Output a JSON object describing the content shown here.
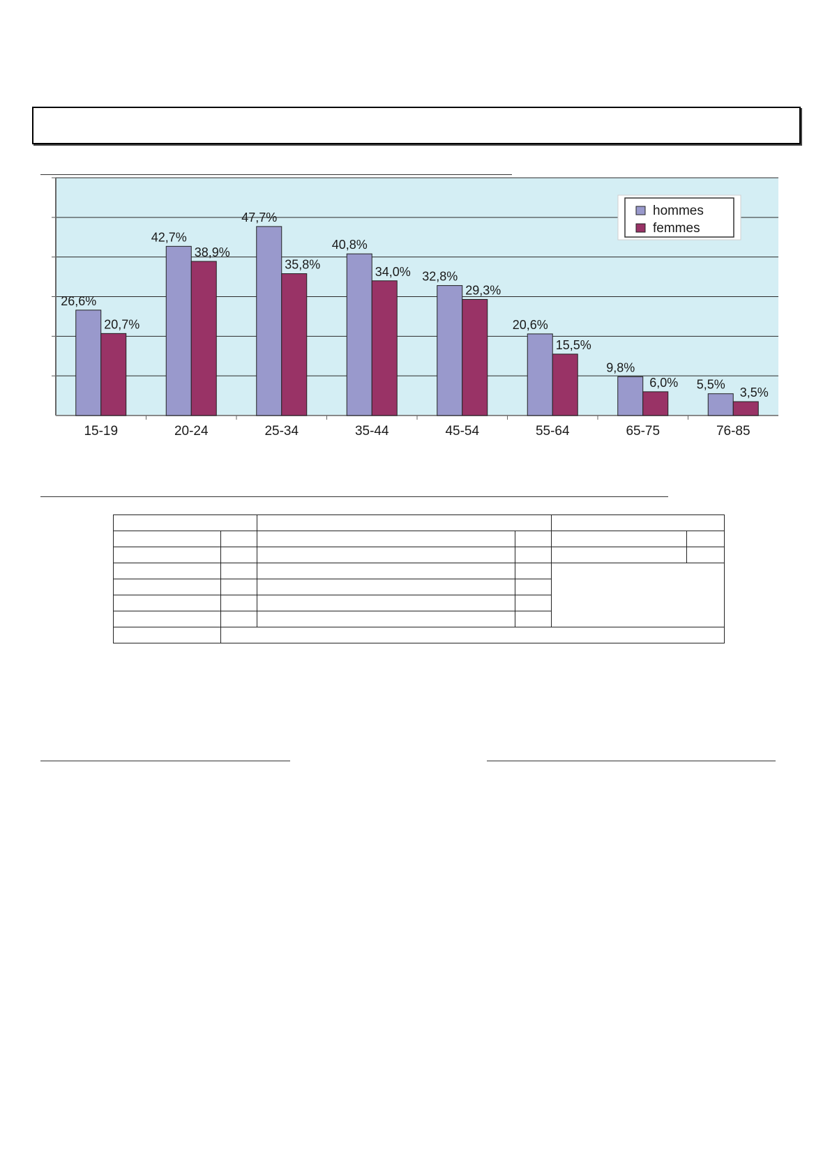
{
  "chart_data": {
    "type": "bar",
    "categories": [
      "15-19",
      "20-24",
      "25-34",
      "35-44",
      "45-54",
      "55-64",
      "65-75",
      "76-85"
    ],
    "series": [
      {
        "name": "hommes",
        "color": "#9999cc",
        "values": [
          26.6,
          42.7,
          47.7,
          40.8,
          32.8,
          20.6,
          9.8,
          5.5
        ],
        "labels": [
          "26,6%",
          "42,7%",
          "47,7%",
          "40,8%",
          "32,8%",
          "20,6%",
          "9,8%",
          "5,5%"
        ]
      },
      {
        "name": "femmes",
        "color": "#993366",
        "values": [
          20.7,
          38.9,
          35.8,
          34.0,
          29.3,
          15.5,
          6.0,
          3.5
        ],
        "labels": [
          "20,7%",
          "38,9%",
          "35,8%",
          "34,0%",
          "29,3%",
          "15,5%",
          "6,0%",
          "3,5%"
        ]
      }
    ],
    "ylim": [
      0,
      60
    ],
    "grid": true,
    "legend": "top-right",
    "plot_background": "#d4eef4"
  }
}
